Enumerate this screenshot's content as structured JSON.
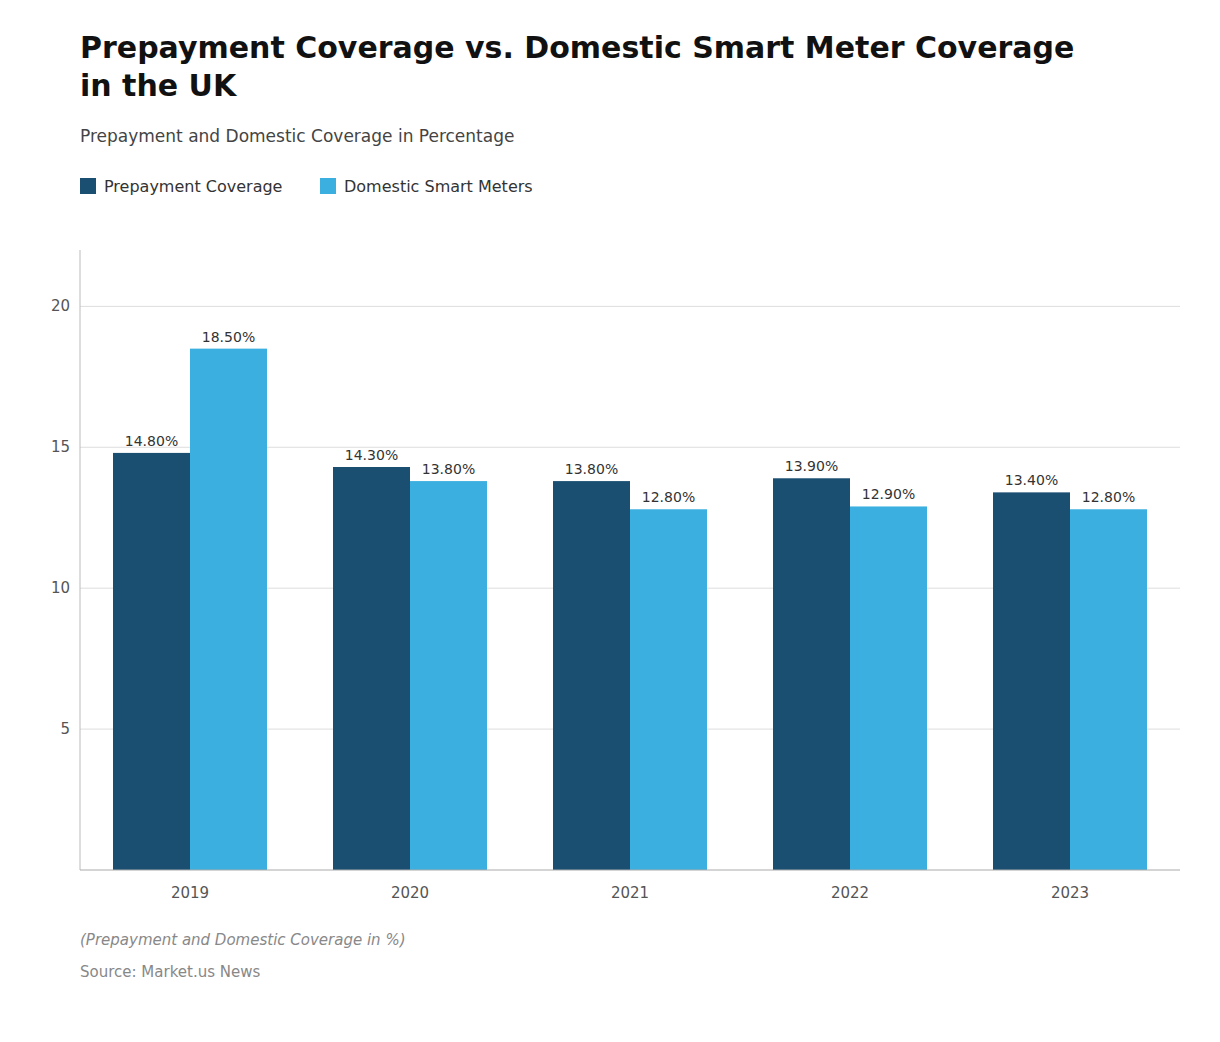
{
  "chart_data": {
    "type": "bar",
    "title": "Prepayment Coverage vs. Domestic Smart Meter Coverage\nin the UK",
    "subtitle": "Prepayment and Domestic Coverage in Percentage",
    "annotations": [
      "(Prepayment and Domestic Coverage in %)",
      "Source: Market.us News"
    ],
    "categories": [
      "2019",
      "2020",
      "2021",
      "2022",
      "2023"
    ],
    "series": [
      {
        "name": "Prepayment Coverage",
        "color": "#1B4F72",
        "values": [
          14.8,
          14.3,
          13.8,
          13.9,
          13.4
        ],
        "value_labels": [
          "14.80%",
          "14.30%",
          "13.80%",
          "13.90%",
          "13.40%"
        ]
      },
      {
        "name": "Domestic Smart Meters",
        "color": "#3AAFE0",
        "values": [
          18.5,
          13.8,
          12.8,
          12.9,
          12.8
        ],
        "value_labels": [
          "18.50%",
          "13.80%",
          "12.80%",
          "12.90%",
          "12.80%"
        ]
      }
    ],
    "ylim": [
      0,
      22
    ],
    "yticks": [
      5,
      10,
      15,
      20
    ],
    "grid": true,
    "legend": "top-left",
    "data_labels": true
  }
}
